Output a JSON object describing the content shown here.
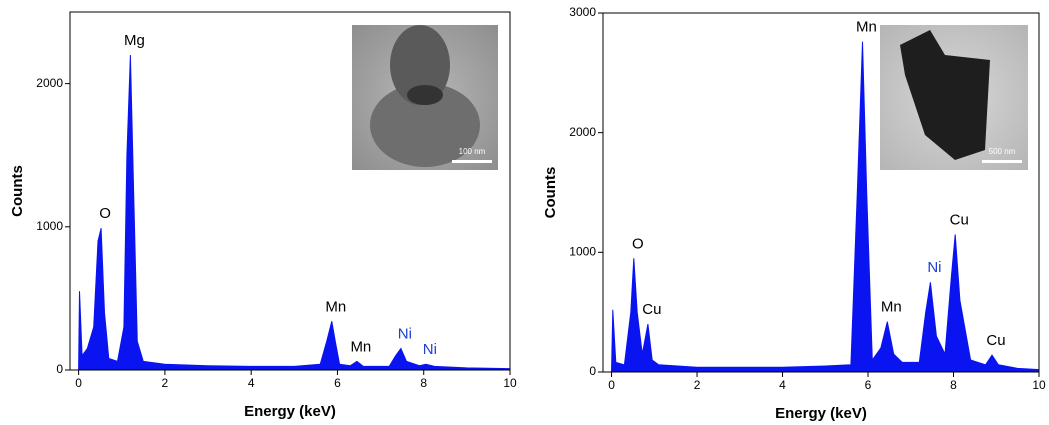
{
  "chart_data": [
    {
      "type": "area",
      "x_label": "Energy (keV)",
      "y_label": "Counts",
      "color": "#0a14f0",
      "xlim": [
        -0.2,
        10
      ],
      "ylim": [
        0,
        2500
      ],
      "xticks": [
        0,
        2,
        4,
        6,
        8,
        10
      ],
      "yticks": [
        0,
        1000,
        2000
      ],
      "x": [
        0,
        0.02,
        0.08,
        0.2,
        0.35,
        0.45,
        0.52,
        0.6,
        0.7,
        0.9,
        1.05,
        1.12,
        1.2,
        1.28,
        1.36,
        1.5,
        2,
        3,
        4,
        5,
        5.6,
        5.75,
        5.87,
        5.95,
        6.05,
        6.3,
        6.45,
        6.6,
        7.2,
        7.35,
        7.47,
        7.6,
        7.9,
        8.05,
        8.25,
        9,
        10
      ],
      "values": [
        0,
        550,
        100,
        150,
        300,
        900,
        990,
        400,
        80,
        60,
        300,
        1500,
        2200,
        1200,
        200,
        60,
        40,
        30,
        25,
        25,
        40,
        200,
        340,
        200,
        40,
        30,
        60,
        25,
        25,
        100,
        150,
        60,
        30,
        40,
        25,
        15,
        10
      ],
      "peaks": [
        {
          "label": "O",
          "energy": 0.52,
          "counts": 990,
          "color": "#000000"
        },
        {
          "label": "Mg",
          "energy": 1.2,
          "counts": 2200,
          "color": "#000000"
        },
        {
          "label": "Mn",
          "energy": 5.87,
          "counts": 340,
          "color": "#000000"
        },
        {
          "label": "Mn",
          "energy": 6.45,
          "counts": 60,
          "color": "#000000"
        },
        {
          "label": "Ni",
          "energy": 7.47,
          "counts": 150,
          "color": "#1f3fd0"
        },
        {
          "label": "Ni",
          "energy": 8.05,
          "counts": 40,
          "color": "#1f3fd0"
        }
      ],
      "inset_scale_bar": "100 nm"
    },
    {
      "type": "area",
      "x_label": "Energy (keV)",
      "y_label": "Counts",
      "color": "#0a14f0",
      "xlim": [
        -0.2,
        10
      ],
      "ylim": [
        0,
        3000
      ],
      "xticks": [
        0,
        2,
        4,
        6,
        8,
        10
      ],
      "yticks": [
        0,
        1000,
        2000,
        3000
      ],
      "x": [
        0,
        0.03,
        0.1,
        0.3,
        0.45,
        0.52,
        0.6,
        0.72,
        0.85,
        0.95,
        1.1,
        2,
        3,
        4,
        5,
        5.6,
        5.75,
        5.87,
        5.97,
        6.1,
        6.3,
        6.45,
        6.6,
        6.8,
        7.2,
        7.35,
        7.46,
        7.6,
        7.8,
        7.95,
        8.04,
        8.15,
        8.4,
        8.75,
        8.9,
        9.05,
        9.5,
        10
      ],
      "values": [
        0,
        520,
        80,
        60,
        500,
        950,
        500,
        150,
        400,
        100,
        60,
        40,
        40,
        40,
        50,
        60,
        1500,
        2760,
        1500,
        100,
        200,
        420,
        150,
        80,
        80,
        500,
        750,
        300,
        150,
        800,
        1150,
        600,
        100,
        60,
        140,
        60,
        30,
        20
      ],
      "peaks": [
        {
          "label": "O",
          "energy": 0.52,
          "counts": 950,
          "color": "#000000"
        },
        {
          "label": "Cu",
          "energy": 0.85,
          "counts": 400,
          "color": "#000000"
        },
        {
          "label": "Mn",
          "energy": 5.87,
          "counts": 2760,
          "color": "#000000"
        },
        {
          "label": "Mn",
          "energy": 6.45,
          "counts": 420,
          "color": "#000000"
        },
        {
          "label": "Ni",
          "energy": 7.46,
          "counts": 750,
          "color": "#1f3fd0"
        },
        {
          "label": "Cu",
          "energy": 8.04,
          "counts": 1150,
          "color": "#000000"
        },
        {
          "label": "Cu",
          "energy": 8.9,
          "counts": 140,
          "color": "#000000"
        }
      ],
      "inset_scale_bar": "500 nm"
    }
  ]
}
